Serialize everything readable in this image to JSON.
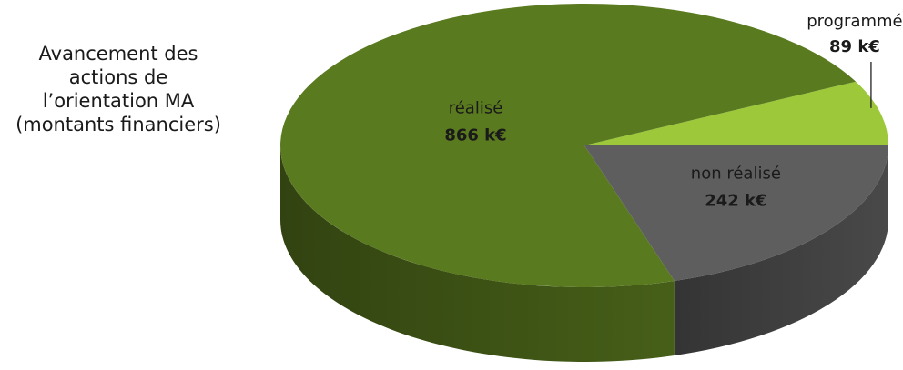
{
  "chart_data": {
    "type": "pie3d",
    "title": [
      "Avancement des",
      "actions de",
      "l’orientation MA",
      "(montants financiers)"
    ],
    "categories": [
      "programmé",
      "réalisé",
      "non réalisé"
    ],
    "values": [
      89,
      866,
      242
    ],
    "value_labels": [
      "89 k€",
      "866 k€",
      "242 k€"
    ],
    "colors": [
      "#9cc83a",
      "#5a7a1f",
      "#5e5e5e"
    ]
  }
}
